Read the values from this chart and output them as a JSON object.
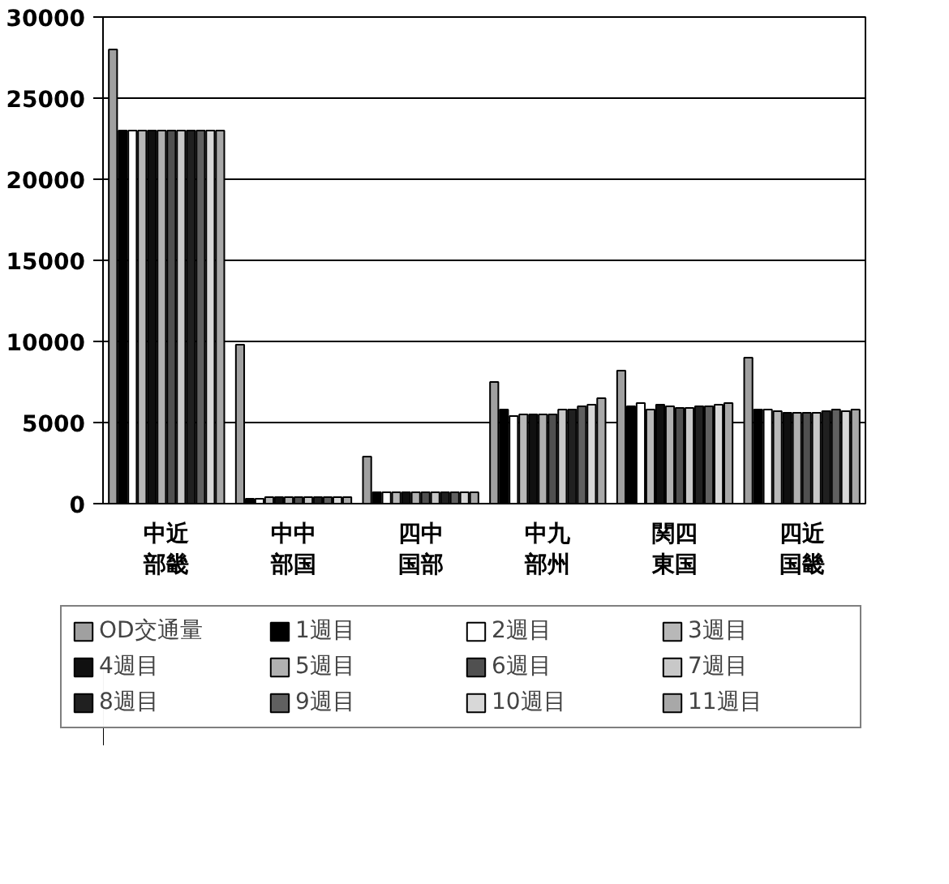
{
  "chart_data": {
    "type": "bar",
    "categories": [
      "中近部畿",
      "中中部国",
      "四中国部",
      "中九部州",
      "関四東国",
      "四近国畿"
    ],
    "ylim": [
      0,
      30000
    ],
    "yticks": [
      0,
      5000,
      10000,
      15000,
      20000,
      25000,
      30000
    ],
    "grid": "y",
    "legend": "bottom",
    "series": [
      {
        "name": "OD交通量",
        "color": "#a0a0a0",
        "values": [
          28000,
          9800,
          2900,
          7500,
          8200,
          9000
        ]
      },
      {
        "name": "1週目",
        "color": "#000000",
        "values": [
          23000,
          300,
          700,
          5800,
          6000,
          5800
        ]
      },
      {
        "name": "2週目",
        "color": "#ffffff",
        "values": [
          23000,
          300,
          700,
          5400,
          6200,
          5800
        ]
      },
      {
        "name": "3週目",
        "color": "#b8b8b8",
        "values": [
          23000,
          400,
          700,
          5500,
          5800,
          5700
        ]
      },
      {
        "name": "4週目",
        "color": "#101010",
        "values": [
          23000,
          400,
          700,
          5500,
          6100,
          5600
        ]
      },
      {
        "name": "5週目",
        "color": "#b0b0b0",
        "values": [
          23000,
          400,
          700,
          5500,
          6000,
          5600
        ]
      },
      {
        "name": "6週目",
        "color": "#505050",
        "values": [
          23000,
          400,
          700,
          5500,
          5900,
          5600
        ]
      },
      {
        "name": "7週目",
        "color": "#c8c8c8",
        "values": [
          23000,
          400,
          700,
          5800,
          5900,
          5600
        ]
      },
      {
        "name": "8週目",
        "color": "#202020",
        "values": [
          23000,
          400,
          700,
          5800,
          6000,
          5700
        ]
      },
      {
        "name": "9週目",
        "color": "#606060",
        "values": [
          23000,
          400,
          700,
          6000,
          6000,
          5800
        ]
      },
      {
        "name": "10週目",
        "color": "#d8d8d8",
        "values": [
          23000,
          400,
          700,
          6100,
          6100,
          5700
        ]
      },
      {
        "name": "11週目",
        "color": "#a8a8a8",
        "values": [
          23000,
          400,
          700,
          6500,
          6200,
          5800
        ]
      }
    ]
  }
}
